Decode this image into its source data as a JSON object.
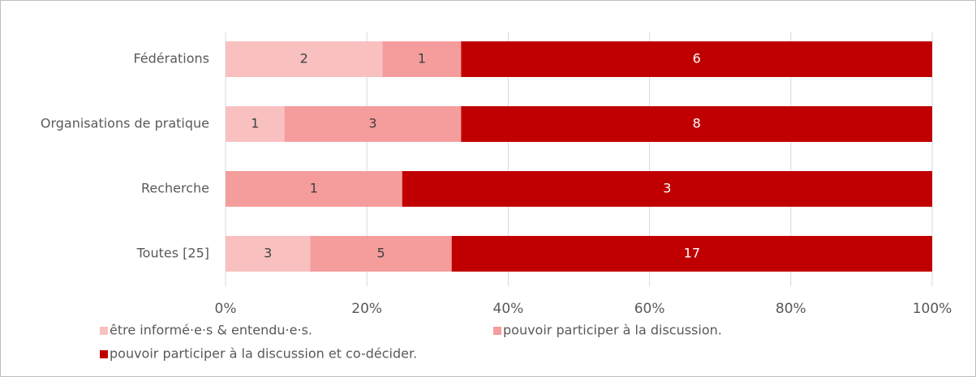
{
  "chart_data": {
    "type": "bar",
    "orientation": "horizontal",
    "stacking": "percent",
    "categories": [
      "Fédérations",
      "Organisations de pratique",
      "Recherche",
      "Toutes  [25]"
    ],
    "series": [
      {
        "name": "être informé·e·s & entendu·e·s.",
        "color": "#f9c0c0",
        "values": [
          2,
          1,
          null,
          3
        ]
      },
      {
        "name": "pouvoir participer à la discussion.",
        "color": "#f59c9c",
        "values": [
          1,
          3,
          1,
          5
        ]
      },
      {
        "name": "pouvoir participer à la discussion et co-décider.",
        "color": "#c00000",
        "values": [
          6,
          8,
          3,
          17
        ]
      }
    ],
    "xlim": [
      0,
      100
    ],
    "xticks": [
      {
        "value": 0,
        "label": "0%"
      },
      {
        "value": 20,
        "label": "20%"
      },
      {
        "value": 40,
        "label": "40%"
      },
      {
        "value": 60,
        "label": "60%"
      },
      {
        "value": 80,
        "label": "80%"
      },
      {
        "value": 100,
        "label": "100%"
      }
    ],
    "grid": true,
    "legend": "bottom"
  }
}
